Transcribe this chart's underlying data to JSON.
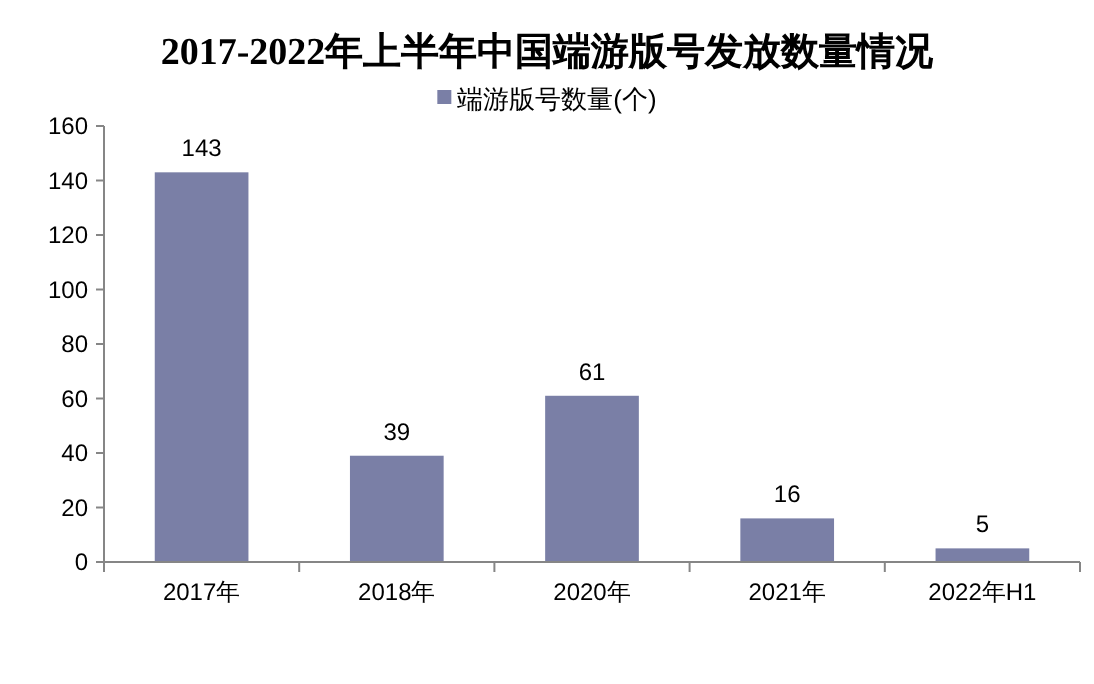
{
  "chart_data": {
    "type": "bar",
    "title": "2017-2022年上半年中国端游版号发放数量情况",
    "categories": [
      "2017年",
      "2018年",
      "2020年",
      "2021年",
      "2022年H1"
    ],
    "series": [
      {
        "name": "端游版号数量(个)",
        "color": "#7a7fa6",
        "values": [
          143,
          39,
          61,
          16,
          5
        ]
      }
    ],
    "ylim": [
      0,
      160
    ],
    "yticks": [
      0,
      20,
      40,
      60,
      80,
      100,
      120,
      140,
      160
    ],
    "data_labels": true,
    "legend": "top",
    "grid": false
  }
}
